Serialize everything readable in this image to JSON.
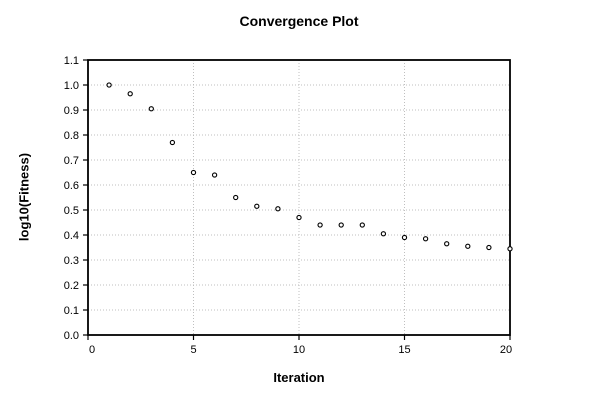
{
  "chart_data": {
    "type": "scatter",
    "title": "Convergence Plot",
    "xlabel": "Iteration",
    "ylabel": "log10(Fitness)",
    "xlim": [
      0,
      20
    ],
    "ylim": [
      0.0,
      1.1
    ],
    "x_ticks": [
      0,
      5,
      10,
      15,
      20
    ],
    "y_ticks": [
      0.0,
      0.1,
      0.2,
      0.3,
      0.4,
      0.5,
      0.6,
      0.7,
      0.8,
      0.9,
      1.0,
      1.1
    ],
    "grid": true,
    "legend": "none",
    "marker": "open-circle",
    "x": [
      1,
      2,
      3,
      4,
      5,
      6,
      7,
      8,
      9,
      10,
      11,
      12,
      13,
      14,
      15,
      16,
      17,
      18,
      19,
      20
    ],
    "y": [
      1.0,
      0.965,
      0.905,
      0.77,
      0.65,
      0.64,
      0.55,
      0.515,
      0.505,
      0.47,
      0.44,
      0.44,
      0.44,
      0.405,
      0.39,
      0.385,
      0.365,
      0.355,
      0.35,
      0.345
    ],
    "colors": {
      "background": "#ffffff",
      "axis": "#000000",
      "grid": "#bfbfbf",
      "marker_stroke": "#000000",
      "marker_fill": "#ffffff",
      "text": "#000000"
    }
  }
}
